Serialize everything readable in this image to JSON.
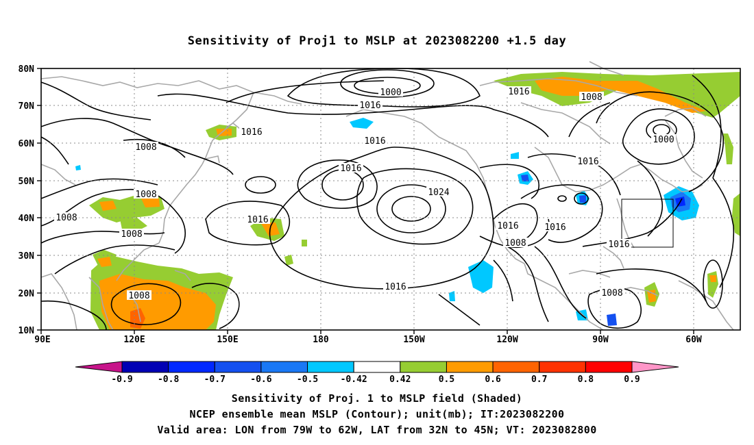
{
  "title": "Sensitivity of Proj1 to MSLP at 2023082200 +1.5 day",
  "map": {
    "lat_labels": [
      "80N",
      "70N",
      "60N",
      "50N",
      "40N",
      "30N",
      "20N",
      "10N"
    ],
    "lon_labels": [
      "90E",
      "120E",
      "150E",
      "180",
      "150W",
      "120W",
      "90W",
      "60W"
    ],
    "contour_labels": [
      {
        "text": "1000"
      },
      {
        "text": "1016"
      },
      {
        "text": "1016"
      },
      {
        "text": "1016"
      },
      {
        "text": "1008"
      },
      {
        "text": "1008"
      },
      {
        "text": "1016"
      },
      {
        "text": "1000"
      },
      {
        "text": "1016"
      },
      {
        "text": "1016"
      },
      {
        "text": "1008"
      },
      {
        "text": "1024"
      },
      {
        "text": "1008"
      },
      {
        "text": "1008"
      },
      {
        "text": "1016"
      },
      {
        "text": "1016"
      },
      {
        "text": "1016"
      },
      {
        "text": "1008"
      },
      {
        "text": "1016"
      },
      {
        "text": "1016"
      },
      {
        "text": "1008"
      },
      {
        "text": "1008"
      }
    ],
    "valid_box": {
      "lon_from": "79W",
      "lon_to": "62W",
      "lat_from": "32N",
      "lat_to": "45N"
    }
  },
  "colorbar": {
    "labels": [
      "-0.9",
      "-0.8",
      "-0.7",
      "-0.6",
      "-0.5",
      "-0.42",
      "0.42",
      "0.5",
      "0.6",
      "0.7",
      "0.8",
      "0.9"
    ],
    "colors": [
      "#c7148a",
      "#0000b4",
      "#0028ff",
      "#1450f0",
      "#1a78f5",
      "#00c8ff",
      "#ffffff",
      "#96cd32",
      "#ff9b00",
      "#ff6400",
      "#ff3200",
      "#ff0000",
      "#ff96c8"
    ]
  },
  "captions": {
    "line1": "Sensitivity of Proj. 1 to MSLP field (Shaded)",
    "line2": "NCEP ensemble mean MSLP (Contour); unit(mb); IT:2023082200",
    "line3": "Valid area: LON from 79W to 62W, LAT from 32N to 45N; VT: 2023082800"
  }
}
